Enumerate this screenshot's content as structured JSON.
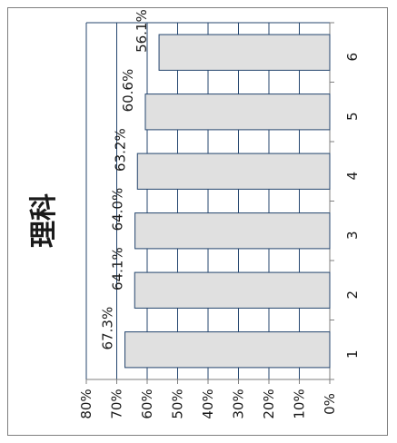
{
  "chart_data": {
    "type": "bar",
    "orientation": "horizontal",
    "title": "理科",
    "categories": [
      "1",
      "2",
      "3",
      "4",
      "5",
      "6"
    ],
    "values": [
      67.3,
      64.1,
      64.0,
      63.2,
      60.6,
      56.1
    ],
    "data_labels": [
      "67.3%",
      "64.1%",
      "64.0%",
      "63.2%",
      "60.6%",
      "56.1%"
    ],
    "ylim": [
      0,
      80
    ],
    "value_ticks": [
      "0%",
      "10%",
      "20%",
      "30%",
      "40%",
      "50%",
      "60%",
      "70%",
      "80%"
    ],
    "grid": true,
    "bar_color": "#e0e0e0",
    "bar_edge_color": "#24456e",
    "grid_color": "#24456e"
  }
}
